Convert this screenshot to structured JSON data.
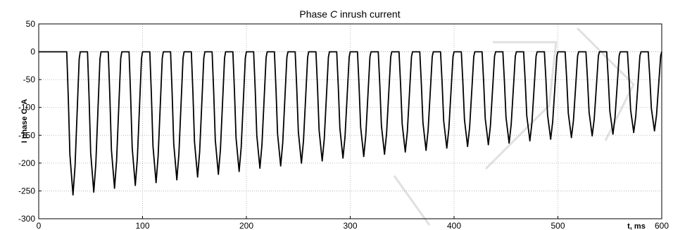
{
  "chart_data": {
    "type": "line",
    "title_prefix": "Phase ",
    "title_italic": "C",
    "title_suffix": " inrush current",
    "xlabel": "t, ms",
    "ylabel": "I phase C, A",
    "xlim": [
      0,
      600
    ],
    "ylim": [
      -300,
      50
    ],
    "x_ticks": [
      "0",
      "100",
      "200",
      "300",
      "400",
      "500"
    ],
    "x_tick_values": [
      0,
      100,
      200,
      300,
      400,
      500
    ],
    "x_end_label": "600",
    "y_ticks": [
      "50",
      "0",
      "-50",
      "-100",
      "-150",
      "-200",
      "-250",
      "-300"
    ],
    "y_tick_values": [
      50,
      0,
      -50,
      -100,
      -150,
      -200,
      -250,
      -300
    ],
    "grid": true,
    "series": [
      {
        "color": "#000000",
        "baseline": 0,
        "period_ms": 20,
        "first_peak_t": 33,
        "peaks": [
          {
            "t": 33,
            "v": -257
          },
          {
            "t": 53,
            "v": -252
          },
          {
            "t": 73,
            "v": -245
          },
          {
            "t": 93,
            "v": -240
          },
          {
            "t": 113,
            "v": -235
          },
          {
            "t": 133,
            "v": -230
          },
          {
            "t": 153,
            "v": -225
          },
          {
            "t": 173,
            "v": -220
          },
          {
            "t": 193,
            "v": -215
          },
          {
            "t": 213,
            "v": -209
          },
          {
            "t": 233,
            "v": -205
          },
          {
            "t": 253,
            "v": -200
          },
          {
            "t": 273,
            "v": -196
          },
          {
            "t": 293,
            "v": -191
          },
          {
            "t": 313,
            "v": -188
          },
          {
            "t": 333,
            "v": -184
          },
          {
            "t": 353,
            "v": -180
          },
          {
            "t": 373,
            "v": -177
          },
          {
            "t": 393,
            "v": -173
          },
          {
            "t": 413,
            "v": -170
          },
          {
            "t": 433,
            "v": -167
          },
          {
            "t": 453,
            "v": -164
          },
          {
            "t": 473,
            "v": -160
          },
          {
            "t": 493,
            "v": -157
          },
          {
            "t": 513,
            "v": -154
          },
          {
            "t": 533,
            "v": -151
          },
          {
            "t": 553,
            "v": -148
          },
          {
            "t": 573,
            "v": -145
          },
          {
            "t": 593,
            "v": -142
          }
        ]
      }
    ]
  }
}
